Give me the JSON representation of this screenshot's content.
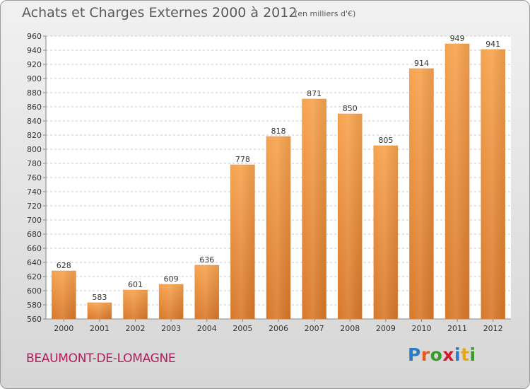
{
  "header": {
    "title": "Achats et Charges Externes 2000 à 2012",
    "subtitle": "(en milliers d'€)"
  },
  "footer": {
    "commune": "BEAUMONT-DE-LOMAGNE",
    "logo_text": "Proxiti",
    "logo_colors": [
      "#2b7cc4",
      "#e55a1c",
      "#3a9a2e",
      "#d6192b",
      "#2b7cc4",
      "#e6a817",
      "#3a9a2e"
    ]
  },
  "chart_data": {
    "type": "bar",
    "categories": [
      "2000",
      "2001",
      "2002",
      "2003",
      "2004",
      "2005",
      "2006",
      "2007",
      "2008",
      "2009",
      "2010",
      "2011",
      "2012"
    ],
    "values": [
      628,
      583,
      601,
      609,
      636,
      778,
      818,
      871,
      850,
      805,
      914,
      949,
      941
    ],
    "title": "Achats et Charges Externes 2000 à 2012",
    "subtitle": "(en milliers d'€)",
    "ylim": [
      560,
      960
    ],
    "ytick_step": 20,
    "grid": true,
    "bar_color": "#f0993f",
    "bar_color_dark": "#d27420"
  }
}
